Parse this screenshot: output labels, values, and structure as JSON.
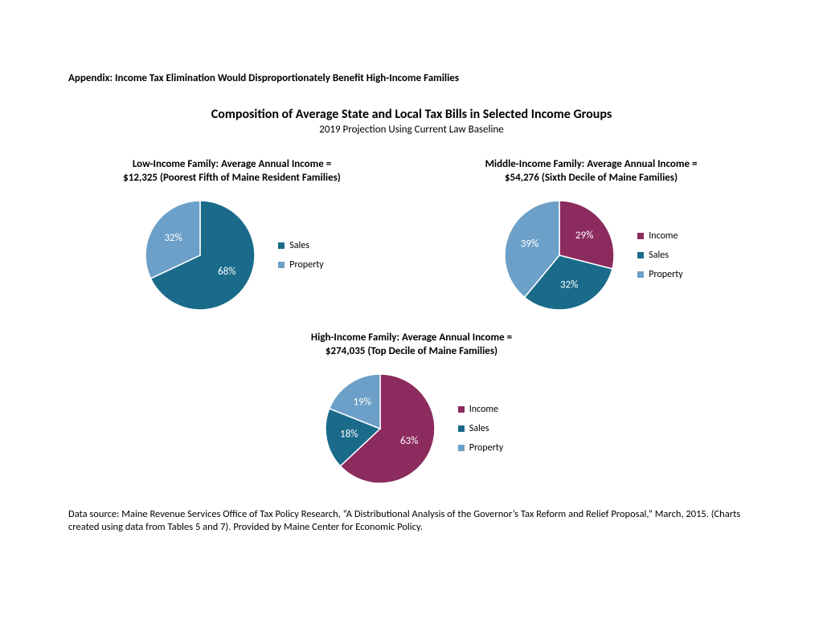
{
  "appendix_line": "Appendix: Income Tax Elimination Would Disproportionately Benefit High-Income Families",
  "main_title": "Composition of Average State and Local Tax Bills in Selected Income Groups",
  "subtitle": "2019 Projection Using Current Law Baseline",
  "colors": {
    "income": "#8b2b5e",
    "sales": "#1a6a8a",
    "property": "#6ca0c8",
    "stroke": "#ffffff",
    "text": "#000000",
    "slice_label": "#ffffff"
  },
  "pie_radius": 68,
  "stroke_width": 1.5,
  "charts": {
    "low": {
      "title_line1": "Low-Income Family: Average Annual Income =",
      "title_line2": "$12,325 (Poorest Fifth of Maine Resident Families)",
      "slices": [
        {
          "key": "sales",
          "label": "Sales",
          "value": 68,
          "color": "#1a6a8a"
        },
        {
          "key": "property",
          "label": "Property",
          "value": 32,
          "color": "#6ca0c8"
        }
      ],
      "legend": [
        {
          "key": "sales",
          "label": "Sales",
          "color": "#1a6a8a"
        },
        {
          "key": "property",
          "label": "Property",
          "color": "#6ca0c8"
        }
      ]
    },
    "middle": {
      "title_line1": "Middle-Income Family: Average Annual Income =",
      "title_line2": "$54,276 (Sixth Decile of Maine Families)",
      "slices": [
        {
          "key": "income",
          "label": "Income",
          "value": 29,
          "color": "#8b2b5e"
        },
        {
          "key": "sales",
          "label": "Sales",
          "value": 32,
          "color": "#1a6a8a"
        },
        {
          "key": "property",
          "label": "Property",
          "value": 39,
          "color": "#6ca0c8"
        }
      ],
      "legend": [
        {
          "key": "income",
          "label": "Income",
          "color": "#8b2b5e"
        },
        {
          "key": "sales",
          "label": "Sales",
          "color": "#1a6a8a"
        },
        {
          "key": "property",
          "label": "Property",
          "color": "#6ca0c8"
        }
      ]
    },
    "high": {
      "title_line1": "High-Income Family: Average Annual Income =",
      "title_line2": "$274,035 (Top Decile of Maine Families)",
      "slices": [
        {
          "key": "income",
          "label": "Income",
          "value": 63,
          "color": "#8b2b5e"
        },
        {
          "key": "sales",
          "label": "Sales",
          "value": 18,
          "color": "#1a6a8a"
        },
        {
          "key": "property",
          "label": "Property",
          "value": 19,
          "color": "#6ca0c8"
        }
      ],
      "legend": [
        {
          "key": "income",
          "label": "Income",
          "color": "#8b2b5e"
        },
        {
          "key": "sales",
          "label": "Sales",
          "color": "#1a6a8a"
        },
        {
          "key": "property",
          "label": "Property",
          "color": "#6ca0c8"
        }
      ]
    }
  },
  "source_text": "Data source: Maine Revenue Services Office of Tax Policy Research, “A Distributional Analysis of the Governor’s Tax Reform and Relief Proposal,” March, 2015. (Charts created using data from Tables 5 and 7). Provided by Maine Center for Economic Policy."
}
